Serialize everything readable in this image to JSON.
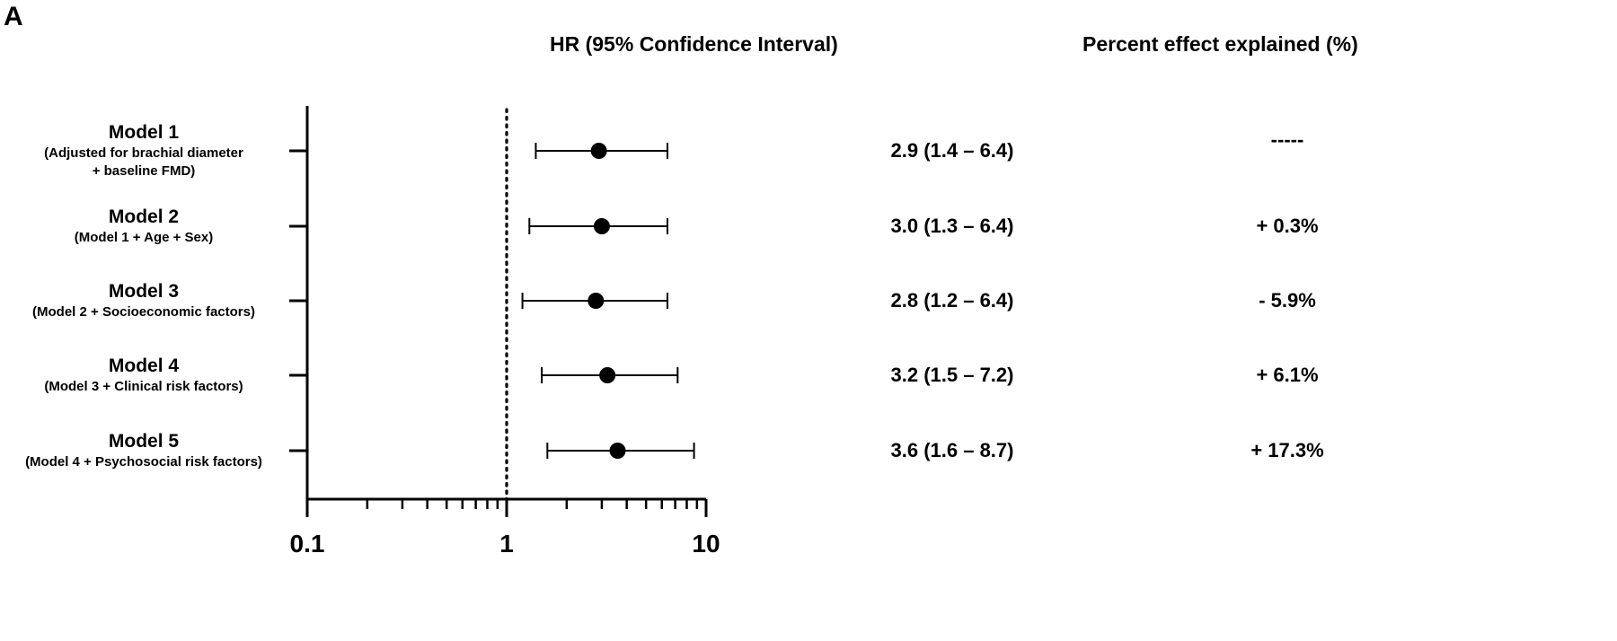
{
  "panel_label": "A",
  "headers": {
    "hr": "HR (95% Confidence Interval)",
    "pct": "Percent effect explained (%)"
  },
  "chart_data": {
    "type": "scatter",
    "subtype": "forest-plot",
    "x_scale": "log",
    "xlim": [
      0.1,
      10
    ],
    "x_tick_labels": [
      "0.1",
      "1",
      "10"
    ],
    "x_ticks": [
      0.1,
      1,
      10
    ],
    "reference_line": 1,
    "grid": false,
    "rows": [
      {
        "name": "Model 1",
        "desc_lines": [
          "(Adjusted for brachial diameter",
          "+ baseline FMD)"
        ],
        "hr": 2.9,
        "lo": 1.4,
        "hi": 6.4,
        "hr_text": "2.9 (1.4 – 6.4)",
        "pct_text": "-----"
      },
      {
        "name": "Model 2",
        "desc_lines": [
          "(Model 1 + Age + Sex)"
        ],
        "hr": 3.0,
        "lo": 1.3,
        "hi": 6.4,
        "hr_text": "3.0 (1.3 – 6.4)",
        "pct_text": "+ 0.3%"
      },
      {
        "name": "Model 3",
        "desc_lines": [
          "(Model 2 + Socioeconomic factors)"
        ],
        "hr": 2.8,
        "lo": 1.2,
        "hi": 6.4,
        "hr_text": "2.8 (1.2 – 6.4)",
        "pct_text": "- 5.9%"
      },
      {
        "name": "Model 4",
        "desc_lines": [
          "(Model 3 + Clinical risk factors)"
        ],
        "hr": 3.2,
        "lo": 1.5,
        "hi": 7.2,
        "hr_text": "3.2 (1.5 – 7.2)",
        "pct_text": "+ 6.1%"
      },
      {
        "name": "Model 5",
        "desc_lines": [
          "(Model 4 + Psychosocial risk factors)"
        ],
        "hr": 3.6,
        "lo": 1.6,
        "hi": 8.7,
        "hr_text": "3.6 (1.6 – 8.7)",
        "pct_text": "+ 17.3%"
      }
    ]
  }
}
